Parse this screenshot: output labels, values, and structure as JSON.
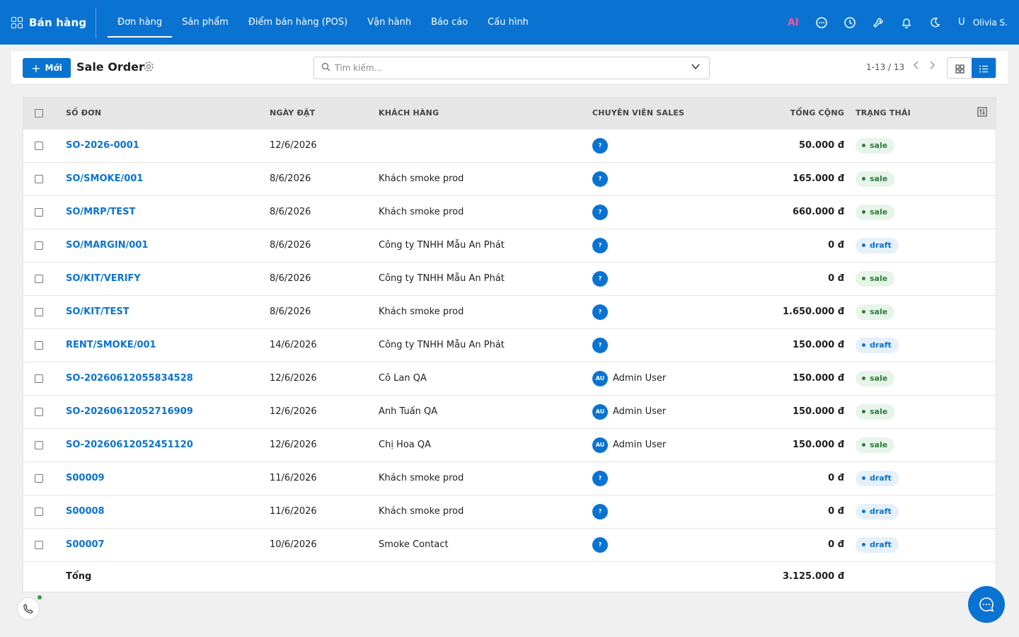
{
  "app": {
    "name": "Bán hàng"
  },
  "nav": [
    {
      "label": "Đơn hàng",
      "active": true
    },
    {
      "label": "Sản phẩm",
      "active": false
    },
    {
      "label": "Điểm bán hàng (POS)",
      "active": false
    },
    {
      "label": "Vận hành",
      "active": false
    },
    {
      "label": "Báo cáo",
      "active": false
    },
    {
      "label": "Cấu hình",
      "active": false
    }
  ],
  "topright": {
    "ai_label": "AI",
    "user_initial": "U",
    "user_name": "Olivia S."
  },
  "control": {
    "new_label": "Mới",
    "title": "Sale Order",
    "search_placeholder": "Tìm kiếm...",
    "pager": "1-13 / 13"
  },
  "columns": {
    "so": "SỐ ĐƠN",
    "date": "NGÀY ĐẶT",
    "customer": "KHÁCH HÀNG",
    "sales": "CHUYÊN VIÊN SALES",
    "total": "TỔNG CỘNG",
    "status": "TRẠNG THÁI"
  },
  "rows": [
    {
      "so": "SO-2026-0001",
      "date": "12/6/2026",
      "customer": "",
      "avatar": "?",
      "sales": "",
      "total": "50.000 đ",
      "status": "sale"
    },
    {
      "so": "SO/SMOKE/001",
      "date": "8/6/2026",
      "customer": "Khách smoke prod",
      "avatar": "?",
      "sales": "",
      "total": "165.000 đ",
      "status": "sale"
    },
    {
      "so": "SO/MRP/TEST",
      "date": "8/6/2026",
      "customer": "Khách smoke prod",
      "avatar": "?",
      "sales": "",
      "total": "660.000 đ",
      "status": "sale"
    },
    {
      "so": "SO/MARGIN/001",
      "date": "8/6/2026",
      "customer": "Công ty TNHH Mẫu An Phát",
      "avatar": "?",
      "sales": "",
      "total": "0 đ",
      "status": "draft"
    },
    {
      "so": "SO/KIT/VERIFY",
      "date": "8/6/2026",
      "customer": "Công ty TNHH Mẫu An Phát",
      "avatar": "?",
      "sales": "",
      "total": "0 đ",
      "status": "sale"
    },
    {
      "so": "SO/KIT/TEST",
      "date": "8/6/2026",
      "customer": "Khách smoke prod",
      "avatar": "?",
      "sales": "",
      "total": "1.650.000 đ",
      "status": "sale"
    },
    {
      "so": "RENT/SMOKE/001",
      "date": "14/6/2026",
      "customer": "Công ty TNHH Mẫu An Phát",
      "avatar": "?",
      "sales": "",
      "total": "150.000 đ",
      "status": "draft"
    },
    {
      "so": "SO-20260612055834528",
      "date": "12/6/2026",
      "customer": "Cô Lan QA",
      "avatar": "AU",
      "sales": "Admin User",
      "total": "150.000 đ",
      "status": "sale"
    },
    {
      "so": "SO-20260612052716909",
      "date": "12/6/2026",
      "customer": "Anh Tuấn QA",
      "avatar": "AU",
      "sales": "Admin User",
      "total": "150.000 đ",
      "status": "sale"
    },
    {
      "so": "SO-20260612052451120",
      "date": "12/6/2026",
      "customer": "Chị Hoa QA",
      "avatar": "AU",
      "sales": "Admin User",
      "total": "150.000 đ",
      "status": "sale"
    },
    {
      "so": "S00009",
      "date": "11/6/2026",
      "customer": "Khách smoke prod",
      "avatar": "?",
      "sales": "",
      "total": "0 đ",
      "status": "draft"
    },
    {
      "so": "S00008",
      "date": "11/6/2026",
      "customer": "Khách smoke prod",
      "avatar": "?",
      "sales": "",
      "total": "0 đ",
      "status": "draft"
    },
    {
      "so": "S00007",
      "date": "10/6/2026",
      "customer": "Smoke Contact",
      "avatar": "?",
      "sales": "",
      "total": "0 đ",
      "status": "draft"
    }
  ],
  "footer": {
    "label": "Tổng",
    "total": "3.125.000 đ"
  },
  "colors": {
    "primary": "#0a73d2",
    "sale": "#2e7d3a",
    "draft": "#0a73d2",
    "ai": "#ff4f9a"
  }
}
